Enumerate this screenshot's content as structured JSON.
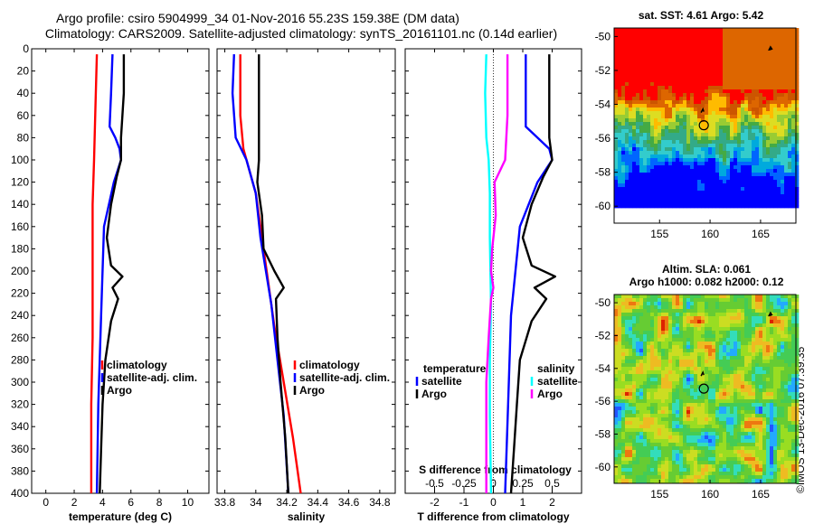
{
  "header": {
    "line1": "Argo profile: csiro 5904999_34 01-Nov-2016 55.23S 159.38E (DM data)",
    "line2": "Climatology: CARS2009. Satellite-adjusted climatology: synTS_20161101.nc (0.14d earlier)"
  },
  "watermark": "©IMOS 13-Dec-2016 07:39:35",
  "colors": {
    "climatology": "#ff0000",
    "satellite_adj": "#0000ff",
    "argo": "#000000",
    "salinity_satellite": "#00ffff",
    "salinity_argo": "#ff00ff"
  },
  "chart_data": [
    {
      "type": "line",
      "name": "temperature-panel",
      "xlabel": "temperature (deg C)",
      "ylabel": "",
      "xlim": [
        -1,
        11.5
      ],
      "ylim": [
        0,
        400
      ],
      "y_inverted": true,
      "xticks": [
        0,
        2,
        4,
        6,
        8,
        10
      ],
      "xtick_labels": [
        "0",
        "2",
        "4",
        "6",
        "8",
        "10"
      ],
      "yticks": [
        0,
        20,
        40,
        60,
        80,
        100,
        120,
        140,
        160,
        180,
        200,
        220,
        240,
        260,
        280,
        300,
        320,
        340,
        360,
        380,
        400
      ],
      "ytick_labels": [
        "0",
        "20",
        "40",
        "60",
        "80",
        "100",
        "120",
        "140",
        "160",
        "180",
        "200",
        "220",
        "240",
        "260",
        "280",
        "300",
        "320",
        "340",
        "360",
        "380",
        "400"
      ],
      "legend": {
        "position": "lower-right",
        "entries": [
          "climatology",
          "satellite-adj. clim.",
          "Argo"
        ]
      },
      "series": [
        {
          "name": "climatology",
          "color": "#ff0000",
          "depth": [
            5,
            50,
            100,
            140,
            200,
            260,
            320,
            360,
            400
          ],
          "values": [
            3.6,
            3.5,
            3.4,
            3.3,
            3.3,
            3.3,
            3.2,
            3.2,
            3.2
          ]
        },
        {
          "name": "satellite-adj. clim.",
          "color": "#0000ff",
          "depth": [
            5,
            40,
            70,
            80,
            90,
            100,
            120,
            160,
            240,
            320,
            400
          ],
          "values": [
            4.7,
            4.6,
            4.5,
            4.9,
            5.2,
            5.3,
            4.8,
            4.1,
            3.9,
            3.7,
            3.6
          ]
        },
        {
          "name": "Argo",
          "color": "#000000",
          "depth": [
            5,
            40,
            80,
            100,
            115,
            140,
            170,
            195,
            205,
            215,
            225,
            245,
            280,
            320,
            360,
            400
          ],
          "values": [
            5.5,
            5.5,
            5.3,
            5.3,
            5.0,
            4.6,
            4.3,
            4.6,
            5.4,
            4.7,
            5.1,
            4.6,
            4.2,
            4.0,
            3.9,
            3.8
          ]
        }
      ]
    },
    {
      "type": "line",
      "name": "salinity-panel",
      "xlabel": "salinity",
      "ylabel": "",
      "xlim": [
        33.75,
        34.9
      ],
      "ylim": [
        0,
        400
      ],
      "y_inverted": true,
      "xticks": [
        33.8,
        34,
        34.2,
        34.4,
        34.6,
        34.8
      ],
      "xtick_labels": [
        "33.8",
        "34",
        "34.2",
        "34.4",
        "34.6",
        "34.8"
      ],
      "legend": {
        "position": "lower-right",
        "entries": [
          "climatology",
          "satellite-adj. clim.",
          "Argo"
        ]
      },
      "series": [
        {
          "name": "climatology",
          "color": "#ff0000",
          "depth": [
            5,
            60,
            90,
            130,
            180,
            250,
            300,
            350,
            400
          ],
          "values": [
            33.9,
            33.9,
            33.92,
            34.0,
            34.05,
            34.12,
            34.18,
            34.24,
            34.29
          ]
        },
        {
          "name": "satellite-adj. clim.",
          "color": "#0000ff",
          "depth": [
            5,
            40,
            80,
            100,
            130,
            170,
            230,
            280,
            330,
            400
          ],
          "values": [
            33.86,
            33.85,
            33.87,
            33.94,
            34.0,
            34.03,
            34.1,
            34.14,
            34.18,
            34.21
          ]
        },
        {
          "name": "Argo",
          "color": "#000000",
          "depth": [
            5,
            60,
            100,
            120,
            150,
            180,
            200,
            215,
            225,
            260,
            300,
            350,
            400
          ],
          "values": [
            34.02,
            34.02,
            34.02,
            34.01,
            34.04,
            34.05,
            34.12,
            34.18,
            34.13,
            34.14,
            34.16,
            34.19,
            34.21
          ]
        }
      ]
    },
    {
      "type": "line",
      "name": "difference-panel",
      "xlabel": "T difference from climatology",
      "xlabel_top": "S difference from climatology",
      "xlim": [
        -3,
        3
      ],
      "ylim": [
        0,
        400
      ],
      "y_inverted": true,
      "xticks": [
        -2,
        -1,
        0,
        1,
        2
      ],
      "xtick_labels": [
        "-2",
        "-1",
        "0",
        "1",
        "2"
      ],
      "xticks_s": [
        -0.5,
        -0.25,
        0,
        0.25,
        0.5
      ],
      "xtick_labels_s": [
        "-0.5",
        "-0.25",
        "0",
        "0.25",
        "0.5"
      ],
      "legend": {
        "position": "lower",
        "temperature_title": "temperature",
        "salinity_title": "salinity",
        "temperature_entries": [
          "satellite",
          "Argo"
        ],
        "salinity_entries": [
          "satellite",
          "Argo"
        ]
      },
      "series": [
        {
          "name": "T satellite",
          "color": "#0000ff",
          "depth": [
            5,
            40,
            70,
            80,
            90,
            100,
            120,
            160,
            240,
            320,
            400
          ],
          "values": [
            1.1,
            1.1,
            1.1,
            1.5,
            1.9,
            2.0,
            1.5,
            0.9,
            0.6,
            0.5,
            0.4
          ]
        },
        {
          "name": "T Argo",
          "color": "#000000",
          "depth": [
            5,
            40,
            80,
            100,
            115,
            140,
            170,
            195,
            205,
            215,
            225,
            245,
            280,
            320,
            360,
            400
          ],
          "values": [
            1.9,
            1.9,
            1.9,
            2.0,
            1.7,
            1.3,
            1.0,
            1.3,
            2.1,
            1.4,
            1.8,
            1.3,
            0.9,
            0.8,
            0.7,
            0.6
          ]
        },
        {
          "name": "S satellite",
          "color": "#00ffff",
          "depth": [
            5,
            40,
            80,
            100,
            130,
            170,
            230,
            280,
            330,
            400
          ],
          "values": [
            -0.06,
            -0.07,
            -0.06,
            -0.04,
            -0.03,
            -0.03,
            -0.02,
            -0.03,
            -0.03,
            -0.02
          ]
        },
        {
          "name": "S Argo",
          "color": "#ff00ff",
          "depth": [
            5,
            60,
            100,
            120,
            150,
            180,
            200,
            215,
            225,
            260,
            300,
            350,
            400
          ],
          "values": [
            0.12,
            0.12,
            0.1,
            0.01,
            0.02,
            -0.01,
            -0.02,
            0.0,
            -0.02,
            -0.04,
            -0.06,
            -0.06,
            -0.06
          ]
        }
      ]
    },
    {
      "type": "heatmap",
      "name": "sst-map",
      "title": "sat. SST: 4.61 Argo: 5.42",
      "xlim": [
        150.5,
        168.5
      ],
      "ylim": [
        -61,
        -49.5
      ],
      "xticks": [
        155,
        160,
        165
      ],
      "xtick_labels": [
        "155",
        "160",
        "165"
      ],
      "yticks": [
        -50,
        -52,
        -54,
        -56,
        -58,
        -60
      ],
      "ytick_labels": [
        "-50",
        "-52",
        "-54",
        "-56",
        "-58",
        "-60"
      ],
      "marker": {
        "lon": 159.38,
        "lat": -55.23
      }
    },
    {
      "type": "heatmap",
      "name": "sla-map",
      "title": "Altim. SLA: 0.061",
      "subtitle": "Argo h1000: 0.082 h2000: 0.12",
      "xlim": [
        150.5,
        168.5
      ],
      "ylim": [
        -61,
        -49.5
      ],
      "xticks": [
        155,
        160,
        165
      ],
      "xtick_labels": [
        "155",
        "160",
        "165"
      ],
      "yticks": [
        -50,
        -52,
        -54,
        -56,
        -58,
        -60
      ],
      "ytick_labels": [
        "-50",
        "-52",
        "-54",
        "-56",
        "-58",
        "-60"
      ],
      "marker": {
        "lon": 159.38,
        "lat": -55.23
      }
    }
  ]
}
